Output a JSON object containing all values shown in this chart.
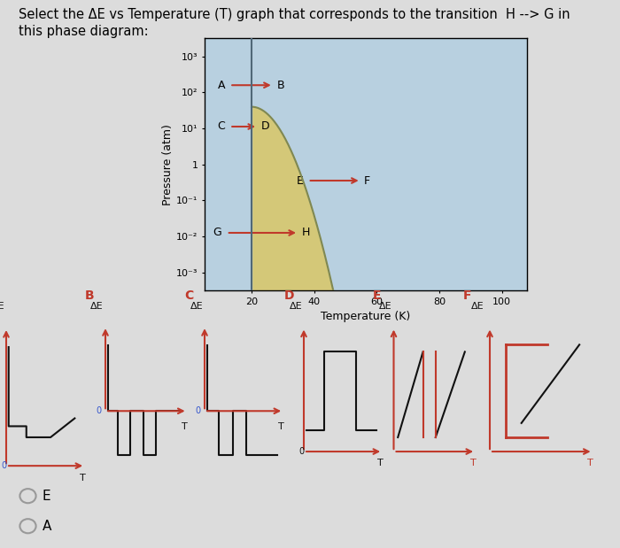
{
  "title_line1": "Select the ΔE vs Temperature (T) graph that corresponds to the transition  H --> G in",
  "title_line2": "this phase diagram:",
  "title_fontsize": 10.5,
  "bg_color": "#dcdcdc",
  "phase_diagram": {
    "xlabel": "Temperature (K)",
    "ylabel": "Pressure (atm)",
    "xticks": [
      20,
      40,
      60,
      80,
      100
    ],
    "ytick_labels": [
      "10⁻³",
      "10⁻²",
      "10⁻¹",
      "1",
      "10¹",
      "10²",
      "10³"
    ],
    "ytick_vals": [
      -3,
      -2,
      -1,
      0,
      1,
      2,
      3
    ],
    "xlim": [
      5,
      108
    ],
    "ylim": [
      -3.5,
      3.5
    ],
    "color_solid_liquid": "#b8d0e0",
    "color_gas": "#d4c878",
    "color_gas_left": "#c8d8a0",
    "color_curve": "#808850",
    "color_boundary_vert": "#506878",
    "ax_bg": "#c8d8e8"
  },
  "red": "#c0392b",
  "black": "#111111",
  "answer_options": [
    "E",
    "A"
  ]
}
